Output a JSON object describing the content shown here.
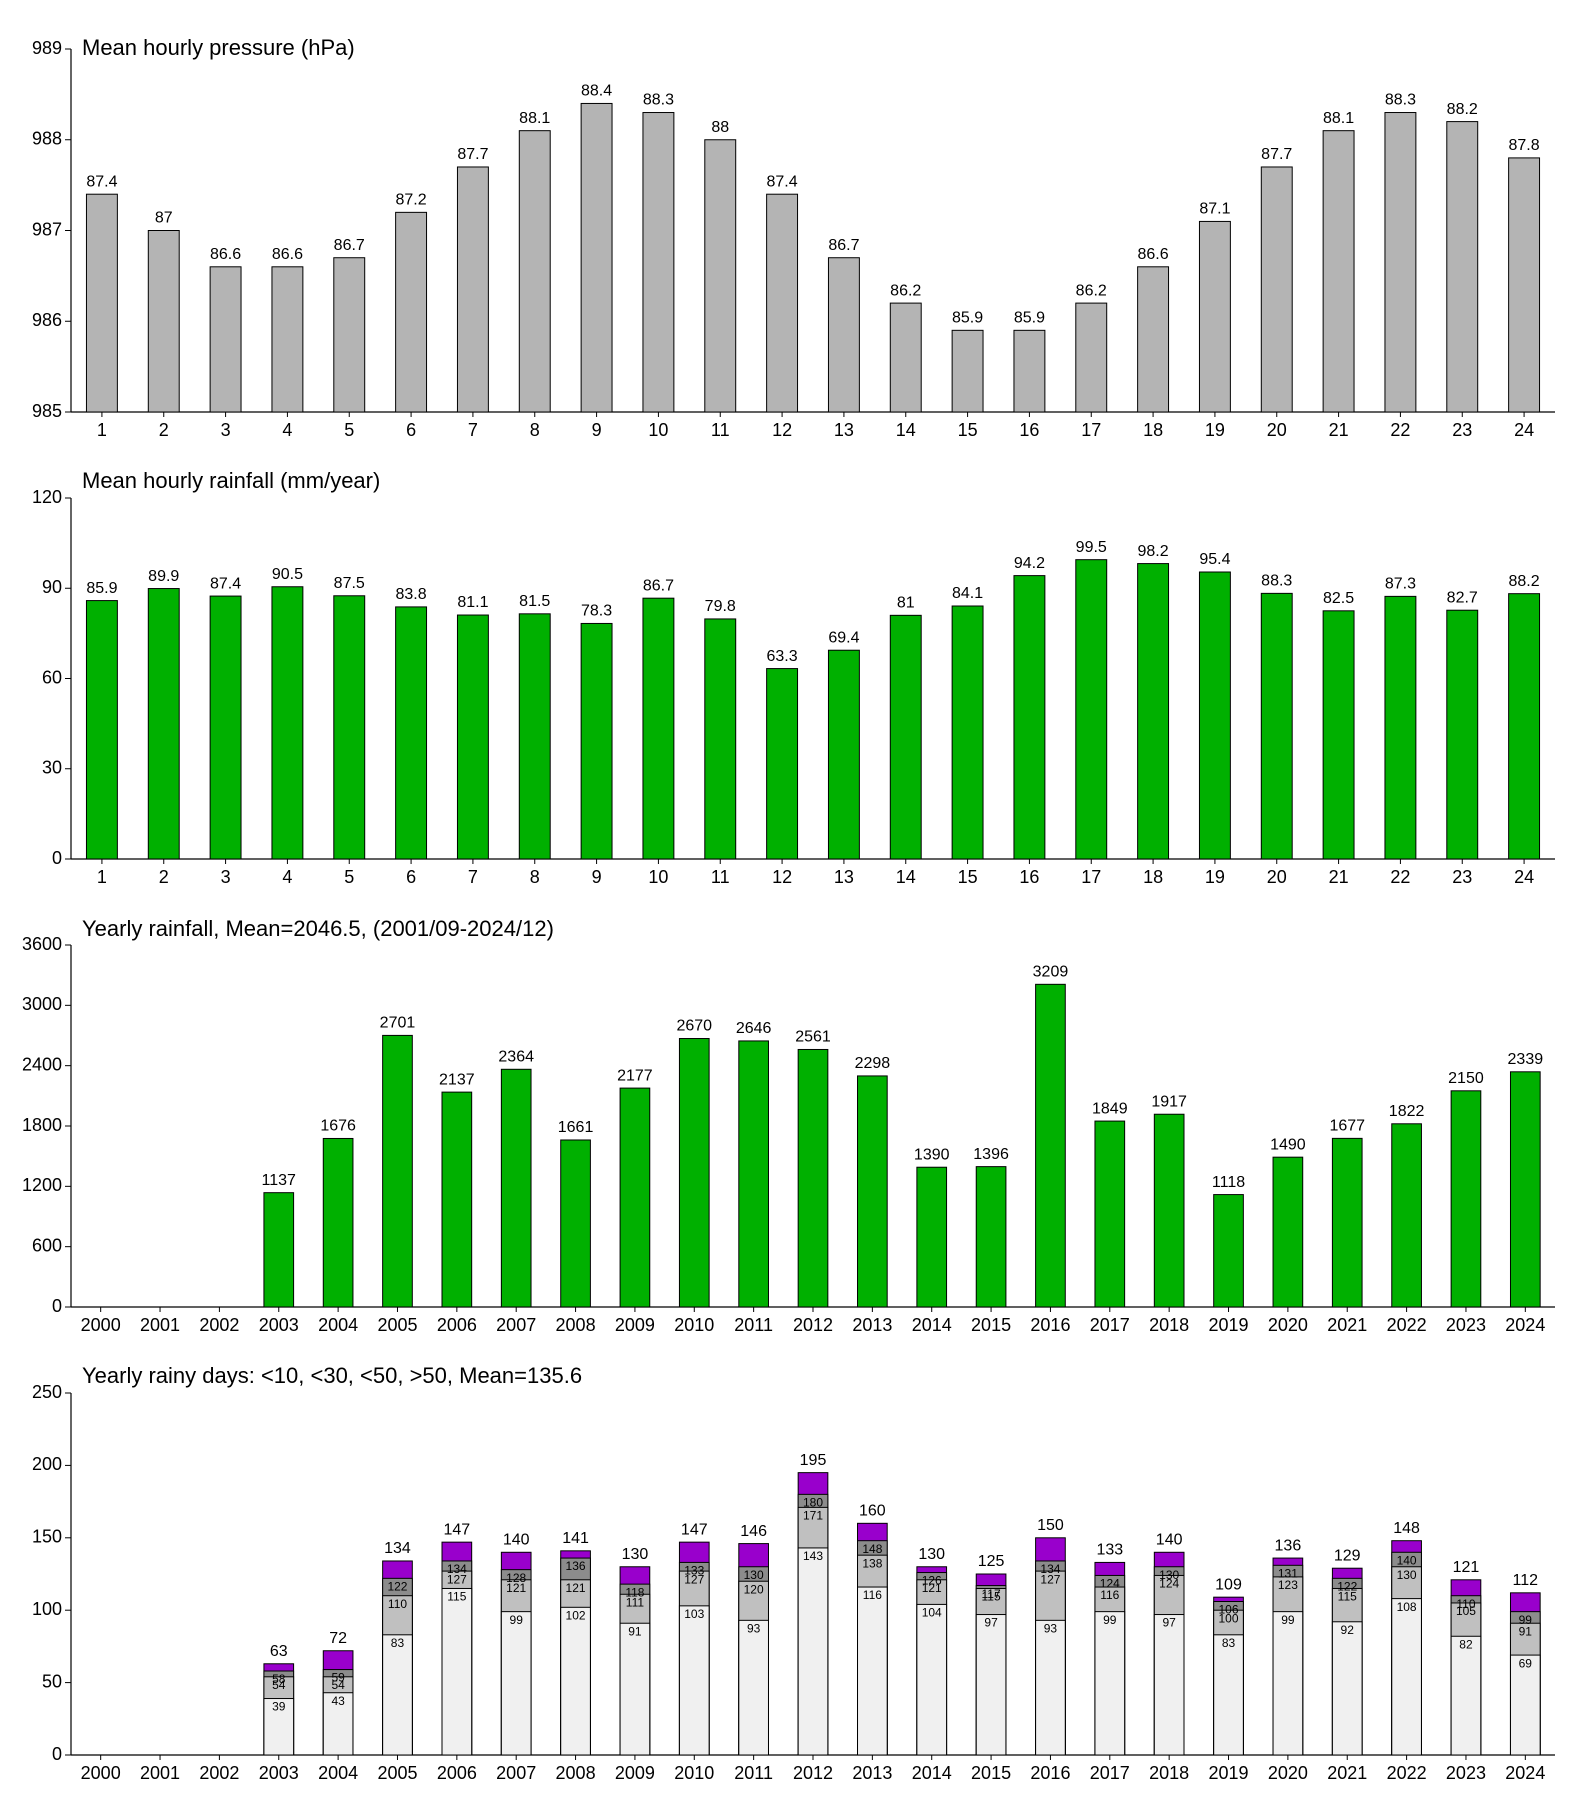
{
  "chart_data": [
    {
      "type": "bar",
      "title": "Mean hourly pressure (hPa)",
      "categories": [
        "1",
        "2",
        "3",
        "4",
        "5",
        "6",
        "7",
        "8",
        "9",
        "10",
        "11",
        "12",
        "13",
        "14",
        "15",
        "16",
        "17",
        "18",
        "19",
        "20",
        "21",
        "22",
        "23",
        "24"
      ],
      "values": [
        987.4,
        987,
        986.6,
        986.6,
        986.7,
        987.2,
        987.7,
        988.1,
        988.4,
        988.3,
        988,
        987.4,
        986.7,
        986.2,
        985.9,
        985.9,
        986.2,
        986.6,
        987.1,
        987.7,
        988.1,
        988.3,
        988.2,
        987.8
      ],
      "value_labels": [
        "87.4",
        "87",
        "86.6",
        "86.6",
        "86.7",
        "87.2",
        "87.7",
        "88.1",
        "88.4",
        "88.3",
        "88",
        "87.4",
        "86.7",
        "86.2",
        "85.9",
        "85.9",
        "86.2",
        "86.6",
        "87.1",
        "87.7",
        "88.1",
        "88.3",
        "88.2",
        "87.8"
      ],
      "color": "#b4b4b4",
      "ylim": [
        985,
        989
      ],
      "yticks": [
        985,
        986,
        987,
        988,
        989
      ]
    },
    {
      "type": "bar",
      "title": "Mean hourly rainfall (mm/year)",
      "categories": [
        "1",
        "2",
        "3",
        "4",
        "5",
        "6",
        "7",
        "8",
        "9",
        "10",
        "11",
        "12",
        "13",
        "14",
        "15",
        "16",
        "17",
        "18",
        "19",
        "20",
        "21",
        "22",
        "23",
        "24"
      ],
      "values": [
        85.9,
        89.9,
        87.4,
        90.5,
        87.5,
        83.8,
        81.1,
        81.5,
        78.3,
        86.7,
        79.8,
        63.3,
        69.4,
        81,
        84.1,
        94.2,
        99.5,
        98.2,
        95.4,
        88.3,
        82.5,
        87.3,
        82.7,
        88.2
      ],
      "color": "#00b000",
      "ylim": [
        0,
        120
      ],
      "yticks": [
        0,
        30,
        60,
        90,
        120
      ]
    },
    {
      "type": "bar",
      "title": "Yearly rainfall, Mean=2046.5, (2001/09-2024/12)",
      "categories": [
        "2000",
        "2001",
        "2002",
        "2003",
        "2004",
        "2005",
        "2006",
        "2007",
        "2008",
        "2009",
        "2010",
        "2011",
        "2012",
        "2013",
        "2014",
        "2015",
        "2016",
        "2017",
        "2018",
        "2019",
        "2020",
        "2021",
        "2022",
        "2023",
        "2024"
      ],
      "values": [
        null,
        null,
        null,
        1137,
        1676,
        2701,
        2137,
        2364,
        1661,
        2177,
        2670,
        2646,
        2561,
        2298,
        1390,
        1396,
        3209,
        1849,
        1917,
        1118,
        1490,
        1677,
        1822,
        2150,
        2339
      ],
      "color": "#00b000",
      "ylim": [
        0,
        3600
      ],
      "yticks": [
        0,
        600,
        1200,
        1800,
        2400,
        3000,
        3600
      ]
    },
    {
      "type": "overlap-bar",
      "title": "Yearly rainy days: <10, <30, <50, >50, Mean=135.6",
      "categories": [
        "2000",
        "2001",
        "2002",
        "2003",
        "2004",
        "2005",
        "2006",
        "2007",
        "2008",
        "2009",
        "2010",
        "2011",
        "2012",
        "2013",
        "2014",
        "2015",
        "2016",
        "2017",
        "2018",
        "2019",
        "2020",
        "2021",
        "2022",
        "2023",
        "2024"
      ],
      "series": [
        {
          "color": "#f0f0f0",
          "values": [
            null,
            null,
            null,
            39,
            43,
            83,
            115,
            99,
            102,
            91,
            103,
            93,
            143,
            116,
            104,
            97,
            93,
            99,
            97,
            83,
            99,
            92,
            108,
            82,
            69
          ]
        },
        {
          "color": "#c0c0c0",
          "values": [
            null,
            null,
            null,
            54,
            54,
            110,
            127,
            121,
            121,
            111,
            127,
            120,
            171,
            138,
            121,
            115,
            127,
            116,
            124,
            100,
            123,
            115,
            130,
            105,
            91
          ]
        },
        {
          "color": "#8c8c8c",
          "values": [
            null,
            null,
            null,
            58,
            59,
            122,
            134,
            128,
            136,
            118,
            133,
            130,
            180,
            148,
            126,
            117,
            134,
            124,
            130,
            106,
            131,
            122,
            140,
            110,
            99
          ]
        },
        {
          "color": "#9900cc",
          "values": [
            null,
            null,
            null,
            63,
            72,
            134,
            147,
            140,
            141,
            130,
            147,
            146,
            195,
            160,
            130,
            125,
            150,
            133,
            140,
            109,
            136,
            129,
            148,
            121,
            112
          ]
        }
      ],
      "ylim": [
        0,
        250
      ],
      "yticks": [
        0,
        50,
        100,
        150,
        200,
        250
      ]
    }
  ]
}
